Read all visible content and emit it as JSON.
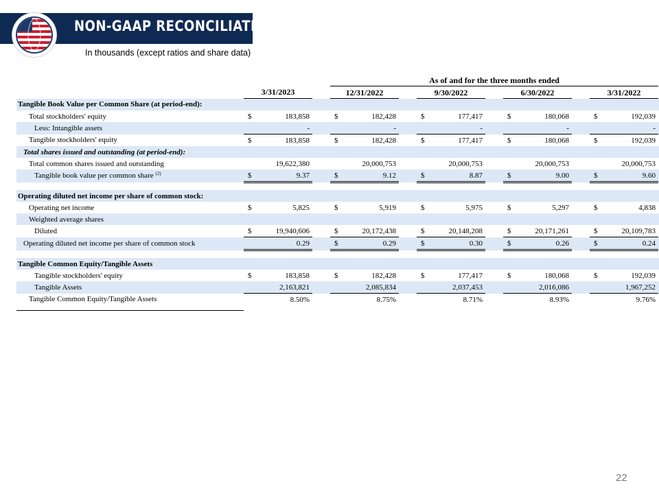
{
  "header": {
    "title": "NON-GAAP RECONCILIATION",
    "subtitle": "In thousands (except ratios and share data)",
    "colors": {
      "header_bg": "#0f2a52",
      "row_shade": "#dde8f6"
    }
  },
  "logo": {
    "icon": "globe-flag-icon"
  },
  "table": {
    "group_header": "As of and for the three months ended",
    "columns": [
      "3/31/2023",
      "12/31/2022",
      "9/30/2022",
      "6/30/2022",
      "3/31/2022"
    ],
    "sections": {
      "tbv_title": "Tangible Book Value per Common Share (at period-end):",
      "shares_title": "Total shares issued and outstanding (at period-end):",
      "eps_title": "Operating diluted net income per share of common stock:",
      "tce_title": "Tangible Common Equity/Tangible Assets"
    },
    "rows": {
      "total_equity": {
        "label": "Total stockholders' equity",
        "cur": [
          "$",
          "$",
          "$",
          "$",
          "$"
        ],
        "values": [
          "183,858",
          "182,428",
          "177,417",
          "180,068",
          "192,039"
        ]
      },
      "intangibles": {
        "label": "Less: Intangible assets",
        "values": [
          "-",
          "-",
          "-",
          "-",
          "-"
        ]
      },
      "tangible_equity": {
        "label": "Tangible stockholders' equity",
        "cur": [
          "$",
          "$",
          "$",
          "$",
          "$"
        ],
        "values": [
          "183,858",
          "182,428",
          "177,417",
          "180,068",
          "192,039"
        ]
      },
      "shares_outstanding": {
        "label": "Total common shares issued and outstanding",
        "values": [
          "19,622,380",
          "20,000,753",
          "20,000,753",
          "20,000,753",
          "20,000,753"
        ]
      },
      "tbv_per_share": {
        "label": "Tangible book value per common share",
        "footnote": "(2)",
        "cur": [
          "$",
          "$",
          "$",
          "$",
          "$"
        ],
        "values": [
          "9.37",
          "9.12",
          "8.87",
          "9.00",
          "9.60"
        ]
      },
      "op_net_income": {
        "label": "Operating net income",
        "cur": [
          "$",
          "$",
          "$",
          "$",
          "$"
        ],
        "values": [
          "5,825",
          "5,919",
          "5,975",
          "5,297",
          "4,838"
        ]
      },
      "weighted_shares": {
        "label": "Weighted average shares"
      },
      "diluted": {
        "label": "Diluted",
        "cur": [
          "$",
          "$",
          "$",
          "$",
          "$"
        ],
        "values": [
          "19,940,606",
          "20,172,438",
          "20,148,208",
          "20,171,261",
          "20,109,783"
        ]
      },
      "op_eps": {
        "label": "Operating diluted net income per share of common stock",
        "cur": [
          "",
          "$",
          "$",
          "$",
          "$"
        ],
        "values": [
          "0.29",
          "0.29",
          "0.30",
          "0.26",
          "0.24"
        ]
      },
      "tce_equity": {
        "label": "Tangible stockholders' equity",
        "cur": [
          "$",
          "$",
          "$",
          "$",
          "$"
        ],
        "values": [
          "183,858",
          "182,428",
          "177,417",
          "180,068",
          "192,039"
        ]
      },
      "tangible_assets": {
        "label": "Tangible Assets",
        "values": [
          "2,163,821",
          "2,085,834",
          "2,037,453",
          "2,016,086",
          "1,967,252"
        ]
      },
      "tce_ratio": {
        "label": "Tangible Common Equity/Tangible Assets",
        "values": [
          "8.50%",
          "8.75%",
          "8.71%",
          "8.93%",
          "9.76%"
        ]
      }
    }
  },
  "footer": {
    "page_number": "22"
  }
}
